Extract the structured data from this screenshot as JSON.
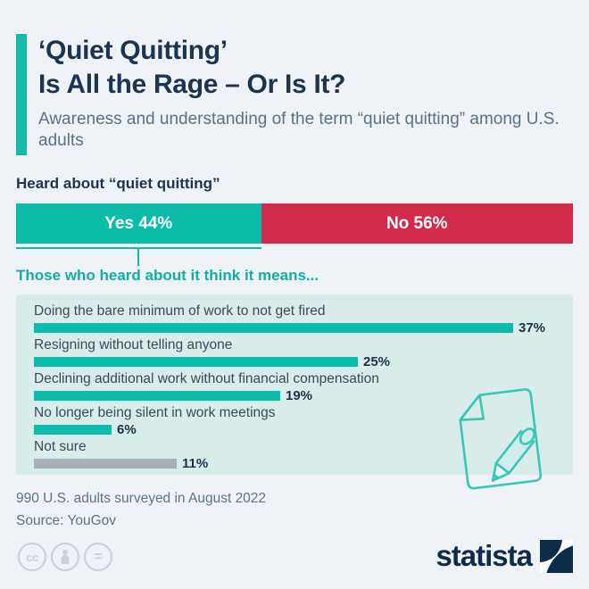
{
  "header": {
    "title_line1": "‘Quiet Quitting’",
    "title_line2": "Is All the Rage – Or Is It?",
    "subtitle": "Awareness and understanding of the term “quiet quitting” among U.S. adults"
  },
  "awareness": {
    "heading": "Heard about “quiet quitting”",
    "segments": [
      {
        "label": "Yes 44%",
        "value": 44,
        "color": "#0cbcab"
      },
      {
        "label": "No 56%",
        "value": 56,
        "color": "#d22a4b"
      }
    ],
    "callout": "Those who heard about it think it means..."
  },
  "chart_data": {
    "type": "bar",
    "orientation": "horizontal",
    "title": "Those who heard about it think it means...",
    "categories": [
      "Doing the bare minimum of work to not get fired",
      "Resigning without telling anyone",
      "Declining additional work without financial compensation",
      "No longer being silent in work meetings",
      "Not sure"
    ],
    "values": [
      37,
      25,
      19,
      6,
      11
    ],
    "value_labels": [
      "37%",
      "25%",
      "19%",
      "6%",
      "11%"
    ],
    "bar_colors": [
      "#0cbcab",
      "#0cbcab",
      "#0cbcab",
      "#0cbcab",
      "#a5aeb6"
    ],
    "unit": "%",
    "xlim": [
      0,
      40
    ],
    "grid": false,
    "legend": false
  },
  "footer": {
    "note": "990 U.S. adults surveyed in August 2022",
    "source": "Source: YouGov",
    "brand": "statista",
    "license_icons": [
      "cc-icon",
      "attribution-person-icon",
      "equals-icon"
    ]
  },
  "colors": {
    "background": "#eff3f8",
    "title": "#1c3451",
    "subtitle": "#5b7285",
    "accent_teal": "#16b9a7",
    "bar_teal": "#0cbcab",
    "no_red": "#d22a4b",
    "panel_bg": "#d8edea",
    "chart_label": "#3a4a5a",
    "value_label": "#1e3148",
    "not_sure_gray": "#a5aeb6",
    "footer_text": "#5e7284",
    "brand_navy": "#0f2b4b",
    "license_gray": "#c8d1da"
  }
}
